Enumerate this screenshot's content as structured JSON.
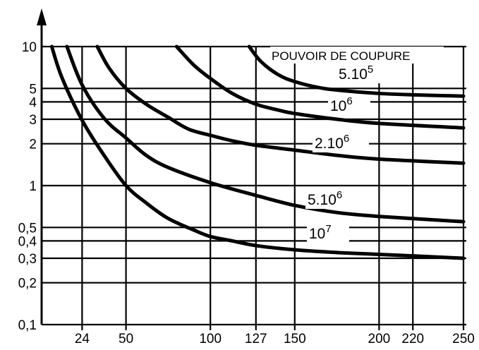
{
  "chart_data": {
    "type": "line",
    "title": "POUVOIR DE COUPURE",
    "xlabel": "",
    "ylabel": "",
    "xlim": [
      0,
      250
    ],
    "ylim": [
      0.1,
      10
    ],
    "y_scale": "log",
    "grid": true,
    "x_ticks": [
      24,
      50,
      100,
      127,
      150,
      200,
      220,
      250
    ],
    "y_ticks": [
      0.1,
      0.2,
      0.3,
      0.4,
      0.5,
      1,
      2,
      3,
      4,
      5,
      10
    ],
    "x_tick_labels": [
      "24",
      "50",
      "100",
      "127",
      "150",
      "200",
      "220",
      "250"
    ],
    "y_tick_labels": [
      "0,1",
      "0,2",
      "0,3",
      "0,4",
      "0,5",
      "1",
      "2",
      "3",
      "4",
      "5",
      "10"
    ],
    "series": [
      {
        "name": "5.10^5",
        "label_base": "5.10",
        "label_exp": "5",
        "x": [
          123,
          130,
          140,
          150,
          165,
          180,
          200,
          220,
          250
        ],
        "y": [
          10,
          7.8,
          6.3,
          5.6,
          5.05,
          4.8,
          4.6,
          4.5,
          4.4
        ]
      },
      {
        "name": "10^6",
        "label_base": "10",
        "label_exp": "6",
        "x": [
          80,
          90,
          100,
          113,
          127,
          140,
          150,
          175,
          200,
          250
        ],
        "y": [
          10,
          7.4,
          5.9,
          4.6,
          3.85,
          3.5,
          3.3,
          3.0,
          2.8,
          2.6
        ]
      },
      {
        "name": "2.10^6",
        "label_base": "2.10",
        "label_exp": "6",
        "x": [
          33,
          40,
          50,
          62,
          75,
          87,
          100,
          113,
          127,
          150,
          175,
          200,
          250
        ],
        "y": [
          10,
          7.0,
          5.0,
          3.85,
          3.1,
          2.55,
          2.3,
          2.1,
          1.95,
          1.8,
          1.65,
          1.55,
          1.45
        ]
      },
      {
        "name": "5.10^6",
        "label_base": "5.10",
        "label_exp": "6",
        "x": [
          15,
          24,
          37,
          50,
          62,
          75,
          100,
          127,
          150,
          175,
          200,
          250
        ],
        "y": [
          10,
          5.3,
          3.05,
          2.2,
          1.65,
          1.35,
          1.05,
          0.85,
          0.72,
          0.64,
          0.6,
          0.55
        ]
      },
      {
        "name": "10^7",
        "label_base": "10",
        "label_exp": "7",
        "x": [
          6,
          12,
          24,
          37,
          50,
          62,
          75,
          90,
          100,
          113,
          127,
          150,
          175,
          200,
          250
        ],
        "y": [
          10,
          6.0,
          2.95,
          1.65,
          1.0,
          0.75,
          0.58,
          0.48,
          0.43,
          0.4,
          0.37,
          0.345,
          0.33,
          0.32,
          0.3
        ]
      }
    ]
  }
}
